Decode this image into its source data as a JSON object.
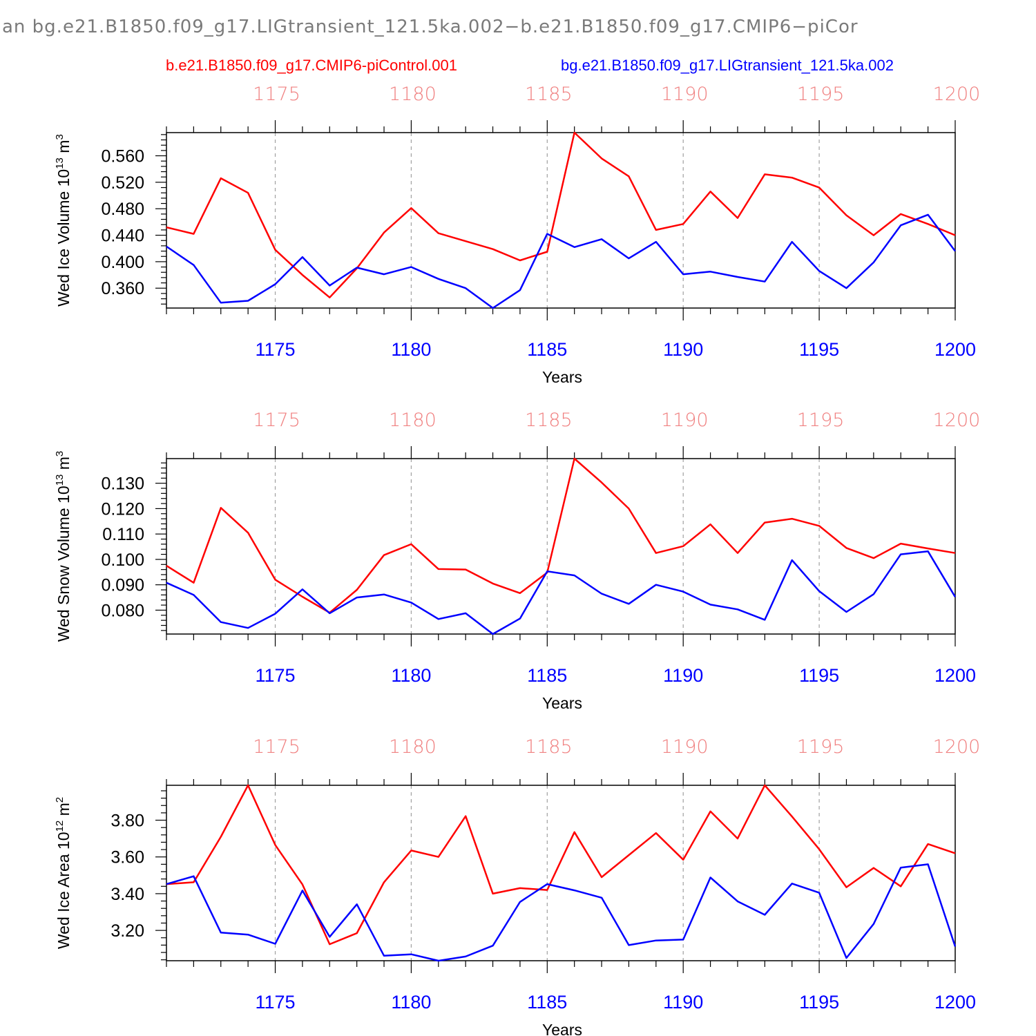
{
  "header": {
    "title": "an bg.e21.B1850.f09_g17.LIGtransient_121.5ka.002−b.e21.B1850.f09_g17.CMIP6−piCor"
  },
  "legend": {
    "series_a": "b.e21.B1850.f09_g17.CMIP6-piControl.001",
    "series_b": "bg.e21.B1850.f09_g17.LIGtransient_121.5ka.002"
  },
  "colors": {
    "series_a": "#ff0000",
    "series_b": "#0000ff",
    "top_ticks": "#f08080",
    "bottom_ticks": "#0000ff",
    "grid": "#a0a0a0"
  },
  "chart_data": [
    {
      "type": "line",
      "panel": "top",
      "ylabel": "Wed Ice Volume 10",
      "ylabel_exp": "13",
      "ylabel_unit": " m",
      "ylabel_unit_exp": "3",
      "xlabel": "Years",
      "xlim": [
        1171,
        1200
      ],
      "ylim": [
        0.33,
        0.595
      ],
      "y_ticks": [
        "0.360",
        "0.400",
        "0.440",
        "0.480",
        "0.520",
        "0.560"
      ],
      "y_tick_values": [
        0.36,
        0.4,
        0.44,
        0.48,
        0.52,
        0.56
      ],
      "y_minor_step": 0.008,
      "x_ticks": [
        "1175",
        "1180",
        "1185",
        "1190",
        "1195",
        "1200"
      ],
      "x_tick_values": [
        1175,
        1180,
        1185,
        1190,
        1195,
        1200
      ],
      "grid": true,
      "x": [
        1171,
        1172,
        1173,
        1174,
        1175,
        1176,
        1177,
        1178,
        1179,
        1180,
        1181,
        1182,
        1183,
        1184,
        1185,
        1186,
        1187,
        1188,
        1189,
        1190,
        1191,
        1192,
        1193,
        1194,
        1195,
        1196,
        1197,
        1198,
        1199,
        1200
      ],
      "series": [
        {
          "name": "b.e21.B1850.f09_g17.CMIP6-piControl.001",
          "color": "#ff0000",
          "values": [
            0.452,
            0.442,
            0.526,
            0.504,
            0.418,
            0.38,
            0.346,
            0.39,
            0.444,
            0.481,
            0.443,
            0.431,
            0.419,
            0.402,
            0.415,
            0.595,
            0.556,
            0.529,
            0.448,
            0.457,
            0.506,
            0.466,
            0.532,
            0.527,
            0.512,
            0.47,
            0.44,
            0.472,
            0.457,
            0.44
          ]
        },
        {
          "name": "bg.e21.B1850.f09_g17.LIGtransient_121.5ka.002",
          "color": "#0000ff",
          "values": [
            0.423,
            0.395,
            0.338,
            0.341,
            0.366,
            0.407,
            0.364,
            0.391,
            0.381,
            0.392,
            0.374,
            0.36,
            0.33,
            0.357,
            0.442,
            0.422,
            0.434,
            0.405,
            0.43,
            0.381,
            0.385,
            0.377,
            0.37,
            0.43,
            0.386,
            0.36,
            0.399,
            0.455,
            0.471,
            0.416
          ]
        }
      ]
    },
    {
      "type": "line",
      "panel": "middle",
      "ylabel": "Wed Snow Volume 10",
      "ylabel_exp": "13",
      "ylabel_unit": " m",
      "ylabel_unit_exp": "3",
      "xlabel": "Years",
      "xlim": [
        1171,
        1200
      ],
      "ylim": [
        0.0706,
        0.1397
      ],
      "y_ticks": [
        "0.080",
        "0.090",
        "0.100",
        "0.110",
        "0.120",
        "0.130"
      ],
      "y_tick_values": [
        0.08,
        0.09,
        0.1,
        0.11,
        0.12,
        0.13
      ],
      "y_minor_step": 0.002,
      "x_ticks": [
        "1175",
        "1180",
        "1185",
        "1190",
        "1195",
        "1200"
      ],
      "x_tick_values": [
        1175,
        1180,
        1185,
        1190,
        1195,
        1200
      ],
      "grid": true,
      "x": [
        1171,
        1172,
        1173,
        1174,
        1175,
        1176,
        1177,
        1178,
        1179,
        1180,
        1181,
        1182,
        1183,
        1184,
        1185,
        1186,
        1187,
        1188,
        1189,
        1190,
        1191,
        1192,
        1193,
        1194,
        1195,
        1196,
        1197,
        1198,
        1199,
        1200
      ],
      "series": [
        {
          "name": "b.e21.B1850.f09_g17.CMIP6-piControl.001",
          "color": "#ff0000",
          "values": [
            0.0975,
            0.0908,
            0.1203,
            0.1105,
            0.092,
            0.0853,
            0.079,
            0.088,
            0.1017,
            0.106,
            0.0962,
            0.096,
            0.0905,
            0.0867,
            0.0948,
            0.1397,
            0.1303,
            0.12,
            0.1025,
            0.1052,
            0.1138,
            0.1025,
            0.1145,
            0.116,
            0.1132,
            0.1045,
            0.1005,
            0.1062,
            0.1043,
            0.1025
          ]
        },
        {
          "name": "bg.e21.B1850.f09_g17.LIGtransient_121.5ka.002",
          "color": "#0000ff",
          "values": [
            0.0908,
            0.086,
            0.0753,
            0.073,
            0.0786,
            0.0882,
            0.0788,
            0.085,
            0.0862,
            0.083,
            0.0765,
            0.0788,
            0.0706,
            0.0767,
            0.0953,
            0.0937,
            0.0865,
            0.0825,
            0.09,
            0.0873,
            0.0822,
            0.0803,
            0.0762,
            0.0997,
            0.0875,
            0.0793,
            0.0863,
            0.102,
            0.1032,
            0.0852
          ]
        }
      ]
    },
    {
      "type": "line",
      "panel": "bottom",
      "ylabel": "Wed Ice Area 10",
      "ylabel_exp": "12",
      "ylabel_unit": " m",
      "ylabel_unit_exp": "2",
      "xlabel": "Years",
      "xlim": [
        1171,
        1200
      ],
      "ylim": [
        3.035,
        3.99
      ],
      "y_ticks": [
        "3.20",
        "3.40",
        "3.60",
        "3.80"
      ],
      "y_tick_values": [
        3.2,
        3.4,
        3.6,
        3.8
      ],
      "y_minor_step": 0.04,
      "x_ticks": [
        "1175",
        "1180",
        "1185",
        "1190",
        "1195",
        "1200"
      ],
      "x_tick_values": [
        1175,
        1180,
        1185,
        1190,
        1195,
        1200
      ],
      "grid": true,
      "x": [
        1171,
        1172,
        1173,
        1174,
        1175,
        1176,
        1177,
        1178,
        1179,
        1180,
        1181,
        1182,
        1183,
        1184,
        1185,
        1186,
        1187,
        1188,
        1189,
        1190,
        1191,
        1192,
        1193,
        1194,
        1195,
        1196,
        1197,
        1198,
        1199,
        1200
      ],
      "series": [
        {
          "name": "b.e21.B1850.f09_g17.CMIP6-piControl.001",
          "color": "#ff0000",
          "values": [
            3.452,
            3.462,
            3.71,
            3.99,
            3.665,
            3.45,
            3.125,
            3.185,
            3.462,
            3.635,
            3.6,
            3.822,
            3.4,
            3.43,
            3.42,
            3.735,
            3.49,
            3.61,
            3.73,
            3.585,
            3.848,
            3.7,
            3.99,
            3.82,
            3.642,
            3.435,
            3.54,
            3.44,
            3.67,
            3.62
          ]
        },
        {
          "name": "bg.e21.B1850.f09_g17.LIGtransient_121.5ka.002",
          "color": "#0000ff",
          "values": [
            3.452,
            3.495,
            3.188,
            3.177,
            3.127,
            3.417,
            3.165,
            3.342,
            3.062,
            3.07,
            3.035,
            3.058,
            3.117,
            3.355,
            3.452,
            3.418,
            3.378,
            3.12,
            3.145,
            3.15,
            3.488,
            3.358,
            3.285,
            3.455,
            3.405,
            3.05,
            3.235,
            3.542,
            3.56,
            3.112
          ]
        }
      ]
    }
  ]
}
